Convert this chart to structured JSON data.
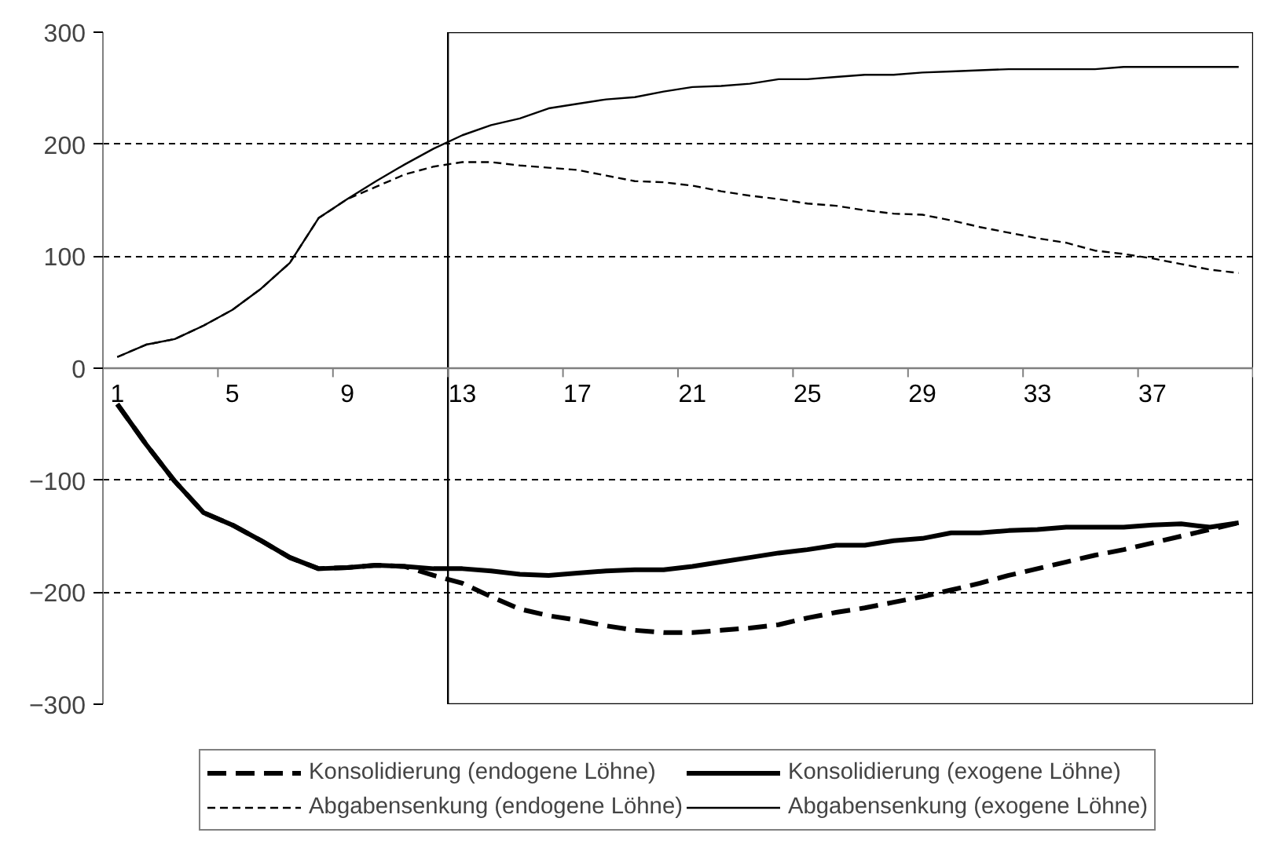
{
  "chart_data": {
    "type": "line",
    "categories": [
      "1",
      null,
      null,
      null,
      "5",
      null,
      null,
      null,
      "9",
      null,
      null,
      null,
      "13",
      null,
      null,
      null,
      "17",
      null,
      null,
      null,
      "21",
      null,
      null,
      null,
      "25",
      null,
      null,
      null,
      "29",
      null,
      null,
      null,
      "33",
      null,
      null,
      null,
      "37",
      null,
      null,
      null
    ],
    "series": [
      {
        "name": "Konsolidierung (endogene Löhne)",
        "color": "#000000",
        "line_style": "dashed",
        "values": [
          -32,
          -68,
          -101,
          -129,
          -140,
          -154,
          -169,
          -179,
          -178,
          -176,
          -177,
          -185,
          -192,
          -204,
          -215,
          -221,
          -225,
          -230,
          -234,
          -236,
          -236,
          -234,
          -232,
          -229,
          -223,
          -218,
          -214,
          -209,
          -204,
          -198,
          -192,
          -185,
          -179,
          -173,
          -167,
          -162,
          -156,
          -150,
          -144,
          -138
        ]
      },
      {
        "name": "Abgabensenkung (endogene Löhne)",
        "color": "#000000",
        "line_style": "dashed",
        "values": [
          10,
          21,
          26,
          38,
          52,
          71,
          94,
          134,
          151,
          162,
          173,
          180,
          184,
          184,
          181,
          179,
          177,
          172,
          167,
          166,
          163,
          158,
          154,
          151,
          147,
          145,
          141,
          138,
          137,
          132,
          126,
          121,
          116,
          112,
          105,
          102,
          98,
          93,
          88,
          85
        ]
      },
      {
        "name": "Konsolidierung (exogene Löhne)",
        "color": "#000000",
        "line_style": "solid",
        "values": [
          -32,
          -68,
          -101,
          -129,
          -140,
          -154,
          -169,
          -179,
          -178,
          -176,
          -177,
          -179,
          -179,
          -181,
          -184,
          -185,
          -183,
          -181,
          -180,
          -180,
          -177,
          -173,
          -169,
          -165,
          -162,
          -158,
          -158,
          -154,
          -152,
          -147,
          -147,
          -145,
          -144,
          -142,
          -142,
          -142,
          -140,
          -139,
          -142,
          -138
        ]
      },
      {
        "name": "Abgabensenkung (exogene Löhne)",
        "color": "#000000",
        "line_style": "solid",
        "values": [
          10,
          21,
          26,
          38,
          52,
          71,
          94,
          134,
          151,
          167,
          182,
          196,
          208,
          217,
          223,
          232,
          236,
          240,
          242,
          247,
          251,
          252,
          254,
          258,
          258,
          260,
          262,
          262,
          264,
          265,
          266,
          267,
          267,
          267,
          267,
          269,
          269,
          269,
          269,
          269
        ]
      }
    ],
    "ylim": [
      -300,
      300
    ],
    "yticks": [
      -300,
      -200,
      -100,
      0,
      100,
      200,
      300
    ],
    "grid": "y",
    "legend": "bottom",
    "marker": "none"
  }
}
